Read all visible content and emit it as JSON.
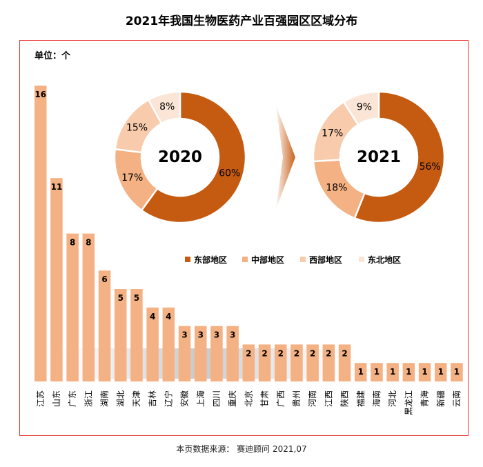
{
  "title": "2021年我国生物医药产业百强园区区域分布",
  "unit_label": "单位：个",
  "source": "本页数据来源： 赛迪顾问 2021,07",
  "colors": {
    "bar": "#f4b183",
    "east": "#c55a11",
    "central": "#f4b183",
    "west": "#f8cbad",
    "northeast": "#fbe5d6",
    "arrow": "#c55a11",
    "frame": "#e8352c"
  },
  "chart_data": [
    {
      "type": "bar",
      "categories": [
        "江苏",
        "山东",
        "广东",
        "浙江",
        "湖南",
        "湖北",
        "天津",
        "吉林",
        "辽宁",
        "安徽",
        "上海",
        "四川",
        "重庆",
        "北京",
        "甘肃",
        "广西",
        "贵州",
        "河南",
        "江西",
        "陕西",
        "福建",
        "海南",
        "河北",
        "黑龙江",
        "青海",
        "新疆",
        "云南"
      ],
      "values": [
        16,
        11,
        8,
        8,
        6,
        5,
        5,
        4,
        4,
        3,
        3,
        3,
        3,
        2,
        2,
        2,
        2,
        2,
        2,
        2,
        1,
        1,
        1,
        1,
        1,
        1,
        1
      ],
      "ylabel": "单位：个"
    },
    {
      "type": "pie",
      "title": "2020",
      "labels": [
        "东部地区",
        "中部地区",
        "西部地区",
        "东北地区"
      ],
      "values": [
        60,
        17,
        15,
        8
      ],
      "value_labels": [
        "60%",
        "17%",
        "15%",
        "8%"
      ]
    },
    {
      "type": "pie",
      "title": "2021",
      "labels": [
        "东部地区",
        "中部地区",
        "西部地区",
        "东北地区"
      ],
      "values": [
        56,
        18,
        17,
        9
      ],
      "value_labels": [
        "56%",
        "18%",
        "17%",
        "9%"
      ]
    }
  ],
  "legend": [
    "东部地区",
    "中部地区",
    "西部地区",
    "东北地区"
  ]
}
